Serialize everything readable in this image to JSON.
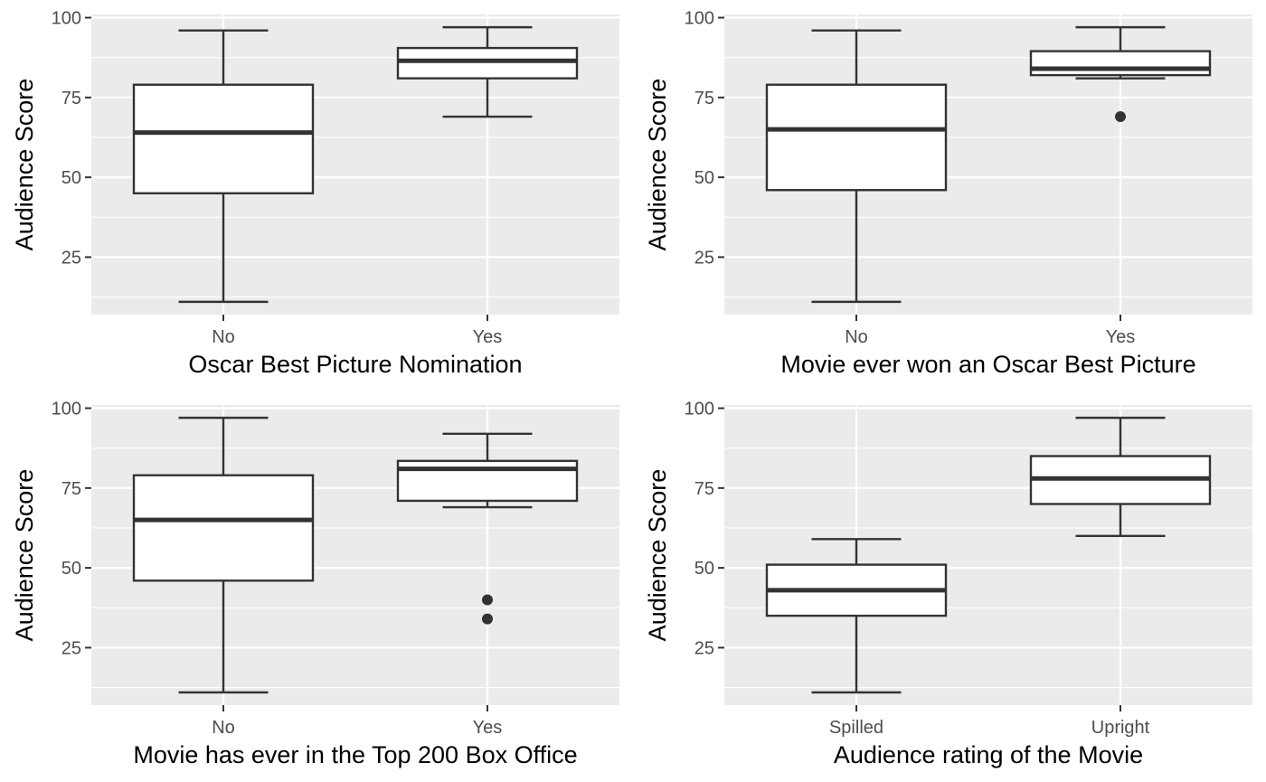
{
  "chart_data": [
    {
      "type": "box",
      "xlabel": "Oscar Best Picture Nomination",
      "ylabel": "Audience Score",
      "categories": [
        "No",
        "Yes"
      ],
      "yticks": [
        25,
        50,
        75,
        100
      ],
      "ylim": [
        7,
        101
      ],
      "boxes": [
        {
          "category": "No",
          "whisker_low": 11,
          "q1": 45,
          "median": 64,
          "q3": 79,
          "whisker_high": 96,
          "outliers": []
        },
        {
          "category": "Yes",
          "whisker_low": 69,
          "q1": 81,
          "median": 86.5,
          "q3": 90.5,
          "whisker_high": 97,
          "outliers": []
        }
      ]
    },
    {
      "type": "box",
      "xlabel": "Movie ever won an Oscar Best Picture",
      "ylabel": "Audience Score",
      "categories": [
        "No",
        "Yes"
      ],
      "yticks": [
        25,
        50,
        75,
        100
      ],
      "ylim": [
        7,
        101
      ],
      "boxes": [
        {
          "category": "No",
          "whisker_low": 11,
          "q1": 46,
          "median": 65,
          "q3": 79,
          "whisker_high": 96,
          "outliers": []
        },
        {
          "category": "Yes",
          "whisker_low": 81,
          "q1": 82,
          "median": 84,
          "q3": 89.5,
          "whisker_high": 97,
          "outliers": [
            69
          ]
        }
      ]
    },
    {
      "type": "box",
      "xlabel": "Movie has ever in the Top 200 Box Office",
      "ylabel": "Audience Score",
      "categories": [
        "No",
        "Yes"
      ],
      "yticks": [
        25,
        50,
        75,
        100
      ],
      "ylim": [
        7,
        101
      ],
      "boxes": [
        {
          "category": "No",
          "whisker_low": 11,
          "q1": 46,
          "median": 65,
          "q3": 79,
          "whisker_high": 97,
          "outliers": []
        },
        {
          "category": "Yes",
          "whisker_low": 69,
          "q1": 71,
          "median": 81,
          "q3": 83.5,
          "whisker_high": 92,
          "outliers": [
            40,
            34
          ]
        }
      ]
    },
    {
      "type": "box",
      "xlabel": "Audience rating of the Movie",
      "ylabel": "Audience Score",
      "categories": [
        "Spilled",
        "Upright"
      ],
      "yticks": [
        25,
        50,
        75,
        100
      ],
      "ylim": [
        7,
        101
      ],
      "boxes": [
        {
          "category": "Spilled",
          "whisker_low": 11,
          "q1": 35,
          "median": 43,
          "q3": 51,
          "whisker_high": 59,
          "outliers": []
        },
        {
          "category": "Upright",
          "whisker_low": 60,
          "q1": 70,
          "median": 78,
          "q3": 85,
          "whisker_high": 97,
          "outliers": []
        }
      ]
    }
  ]
}
